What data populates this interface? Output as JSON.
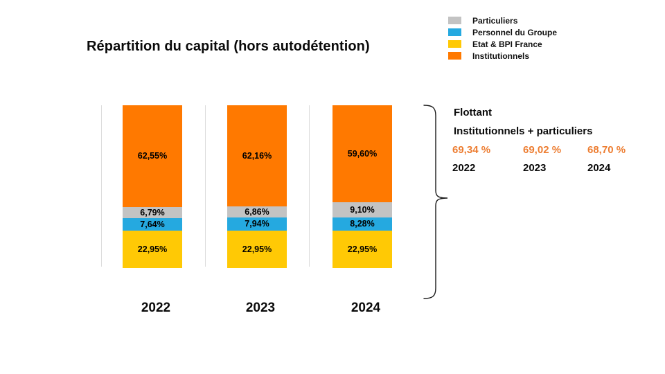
{
  "title": "Répartition du capital (hors autodétention)",
  "legend": {
    "items": [
      {
        "label": "Particuliers",
        "color": "#C3C3C3"
      },
      {
        "label": "Personnel du Groupe",
        "color": "#25A9E0"
      },
      {
        "label": "Etat & BPI France",
        "color": "#FFC905"
      },
      {
        "label": "Institutionnels",
        "color": "#FF7900"
      }
    ]
  },
  "chart_data": {
    "type": "bar",
    "stacked": true,
    "unit": "%",
    "title": "Répartition du capital (hors autodétention)",
    "categories": [
      "2022",
      "2023",
      "2024"
    ],
    "series": [
      {
        "name": "Institutionnels",
        "color": "#FF7900",
        "values": [
          62.55,
          62.16,
          59.6
        ],
        "labels": [
          "62,55%",
          "62,16%",
          "59,60%"
        ]
      },
      {
        "name": "Particuliers",
        "color": "#C3C3C3",
        "values": [
          6.79,
          6.86,
          9.1
        ],
        "labels": [
          "6,79%",
          "6,86%",
          "9,10%"
        ]
      },
      {
        "name": "Personnel du Groupe",
        "color": "#25A9E0",
        "values": [
          7.64,
          7.94,
          8.28
        ],
        "labels": [
          "7,64%",
          "7,94%",
          "8,28%"
        ]
      },
      {
        "name": "Etat & BPI France",
        "color": "#FFC905",
        "values": [
          22.95,
          22.95,
          22.95
        ],
        "labels": [
          "22,95%",
          "22,95%",
          "22,95%"
        ]
      }
    ],
    "ylim": [
      0,
      100
    ],
    "grid": "vertical-category-separators",
    "legend_position": "top-right",
    "stack_order_top_to_bottom": [
      "Institutionnels",
      "Particuliers",
      "Personnel du Groupe",
      "Etat & BPI France"
    ]
  },
  "annotation": {
    "heading": "Flottant",
    "subheading": "Institutionnels + particuliers",
    "accent_color": "#ED7D31",
    "entries": [
      {
        "value": "69,34 %",
        "year": "2022"
      },
      {
        "value": "69,02 %",
        "year": "2023"
      },
      {
        "value": "68,70 %",
        "year": "2024"
      }
    ]
  }
}
